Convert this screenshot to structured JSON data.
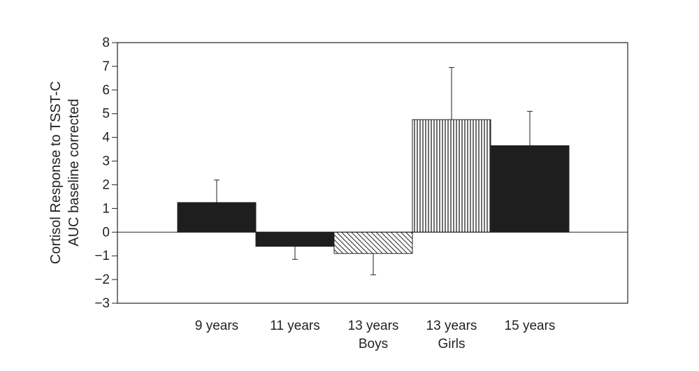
{
  "chart_data": {
    "type": "bar",
    "title": "",
    "xlabel": "",
    "ylabel": [
      "Cortisol Response to TSST-C",
      "AUC baseline corrected"
    ],
    "categories": [
      [
        "9 years"
      ],
      [
        "11 years"
      ],
      [
        "13 years",
        "Boys"
      ],
      [
        "13 years",
        "Girls"
      ],
      [
        "15 years"
      ]
    ],
    "values": [
      1.25,
      -0.6,
      -0.9,
      4.75,
      3.65
    ],
    "error_upper": [
      2.2,
      -1.15,
      -1.8,
      6.95,
      5.1
    ],
    "patterns": [
      "solid",
      "solid",
      "diagonal-hatch",
      "vertical-hatch",
      "solid"
    ],
    "ylim": [
      -3,
      8
    ],
    "yticks": [
      -3,
      -2,
      -1,
      0,
      1,
      2,
      3,
      4,
      5,
      6,
      7,
      8
    ],
    "ytick_labels": [
      "−3",
      "−2",
      "−1",
      "0",
      "1",
      "2",
      "3",
      "4",
      "5",
      "6",
      "7",
      "8"
    ],
    "grid": false,
    "bar_color": "#1e1e1e"
  }
}
